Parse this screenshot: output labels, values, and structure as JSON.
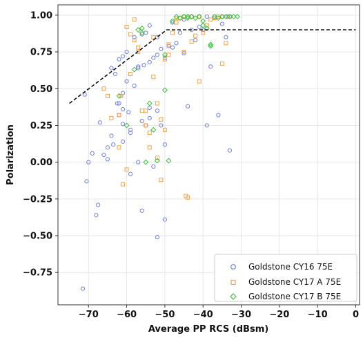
{
  "chart_data": {
    "type": "scatter",
    "xlabel": "Average PP RCS (dBsm)",
    "ylabel": "Polarization",
    "xlim": [
      -78,
      1
    ],
    "ylim": [
      -0.97,
      1.07
    ],
    "xticks": [
      -70,
      -60,
      -50,
      -40,
      -30,
      -20,
      -10,
      0
    ],
    "yticks": [
      1.0,
      0.75,
      0.5,
      0.25,
      0.0,
      -0.25,
      -0.5,
      -0.75
    ],
    "xtick_labels": [
      "−70",
      "−60",
      "−50",
      "−40",
      "−30",
      "−20",
      "−10",
      "0"
    ],
    "ytick_labels": [
      "1.00",
      "0.75",
      "0.50",
      "0.25",
      "0.00",
      "−0.25",
      "−0.50",
      "−0.75"
    ],
    "grid": true,
    "legend_position": "lower-right",
    "reference_line": {
      "style": "dashed",
      "color": "#000000",
      "x": [
        -75,
        -49.5,
        0
      ],
      "y": [
        0.4,
        0.9,
        0.9
      ]
    },
    "series": [
      {
        "name": "Goldstone CY16 75E",
        "color": "#6f7fe0",
        "marker": "circle",
        "x": [
          -71,
          -70,
          -67,
          -66,
          -64,
          -62,
          -61,
          -60,
          -59,
          -57,
          -56,
          -54,
          -52,
          -50,
          -48,
          -46,
          -44,
          -42,
          -40,
          -38,
          -36,
          -34,
          -33,
          -70.5,
          -69,
          -67.5,
          -65,
          -63.5,
          -62.5,
          -61,
          -59.5,
          -58,
          -57,
          -55.5,
          -54,
          -53,
          -52,
          -51,
          -49,
          -47,
          -45,
          -43,
          -41,
          -39,
          -37,
          -35,
          -33.5,
          -64,
          -63,
          -62,
          -61,
          -60,
          -58,
          -56,
          -55,
          -54,
          -52,
          -50,
          -48,
          -45,
          -43,
          -41,
          -39,
          -37,
          -35,
          -62,
          -61,
          -59,
          -57,
          -55,
          -53,
          -56,
          -52,
          -50,
          -59,
          -61,
          -65,
          -68,
          -71.5,
          -51,
          -54
        ],
        "y": [
          0.46,
          0.0,
          0.27,
          0.05,
          0.18,
          0.4,
          0.14,
          0.55,
          0.2,
          0.65,
          -0.33,
          0.3,
          0.35,
          0.12,
          0.78,
          0.88,
          0.38,
          0.83,
          0.9,
          0.65,
          0.32,
          0.85,
          0.08,
          -0.13,
          0.06,
          -0.29,
          0.02,
          0.12,
          0.4,
          0.47,
          0.34,
          0.52,
          0.64,
          0.66,
          0.68,
          0.71,
          0.73,
          0.77,
          0.79,
          0.81,
          0.97,
          0.99,
          0.99,
          0.99,
          0.99,
          0.99,
          0.99,
          0.64,
          0.6,
          0.7,
          0.72,
          0.75,
          0.85,
          0.87,
          0.88,
          0.93,
          0.85,
          0.71,
          0.95,
          0.74,
          0.9,
          0.92,
          0.25,
          0.98,
          0.94,
          0.32,
          0.36,
          0.22,
          0.0,
          0.25,
          -0.03,
          0.28,
          -0.51,
          -0.39,
          -0.08,
          0.26,
          0.1,
          -0.36,
          -0.86,
          0.25,
          0.37
        ]
      },
      {
        "name": "Goldstone CY17 A 75E",
        "color": "#f5a040",
        "marker": "square",
        "x": [
          -66,
          -65,
          -64,
          -62,
          -61,
          -60,
          -59,
          -58,
          -57,
          -56,
          -55,
          -54,
          -53,
          -52,
          -51,
          -50,
          -49,
          -48,
          -47,
          -46,
          -45,
          -44,
          -43,
          -42,
          -41,
          -40,
          -39,
          -38,
          -37,
          -36,
          -35,
          -34,
          -33,
          -62,
          -61.5,
          -58,
          -55,
          -53,
          -51,
          -49,
          -47,
          -45,
          -44.5,
          -43,
          -41,
          -60,
          -59,
          -57,
          -54,
          -52,
          -50
        ],
        "y": [
          0.5,
          0.45,
          0.3,
          0.32,
          -0.15,
          -0.05,
          0.87,
          0.97,
          0.75,
          0.35,
          0.25,
          0.1,
          0.58,
          0.03,
          -0.12,
          0.7,
          0.8,
          0.88,
          0.95,
          0.98,
          0.75,
          -0.24,
          0.82,
          0.86,
          0.55,
          0.88,
          0.93,
          0.97,
          0.98,
          0.99,
          0.67,
          0.81,
          0.99,
          0.1,
          0.45,
          0.83,
          0.35,
          0.85,
          0.29,
          0.73,
          0.98,
          0.99,
          -0.23,
          0.99,
          0.99,
          0.92,
          0.6,
          0.78,
          0.2,
          0.4,
          0.22
        ]
      },
      {
        "name": "Goldstone CY17 B 75E",
        "color": "#3cbf3c",
        "marker": "diamond",
        "x": [
          -62,
          -60,
          -58,
          -57,
          -56,
          -55,
          -54,
          -53,
          -50,
          -49,
          -48,
          -47,
          -46,
          -45,
          -44,
          -43,
          -42,
          -41,
          -40,
          -39,
          -38,
          -37,
          -36,
          -35,
          -34,
          -33,
          -32,
          -31,
          -56,
          -52,
          -50,
          -44,
          -40,
          -38,
          -35
        ],
        "y": [
          0.45,
          0.25,
          0.63,
          0.9,
          0.91,
          0.0,
          0.4,
          0.22,
          0.49,
          0.01,
          0.96,
          0.99,
          0.98,
          0.99,
          0.99,
          0.99,
          0.98,
          0.99,
          0.96,
          0.91,
          0.8,
          0.99,
          0.98,
          0.99,
          0.99,
          0.99,
          0.99,
          0.99,
          0.88,
          0.01,
          0.73,
          0.98,
          0.93,
          0.79,
          0.99
        ]
      }
    ]
  }
}
